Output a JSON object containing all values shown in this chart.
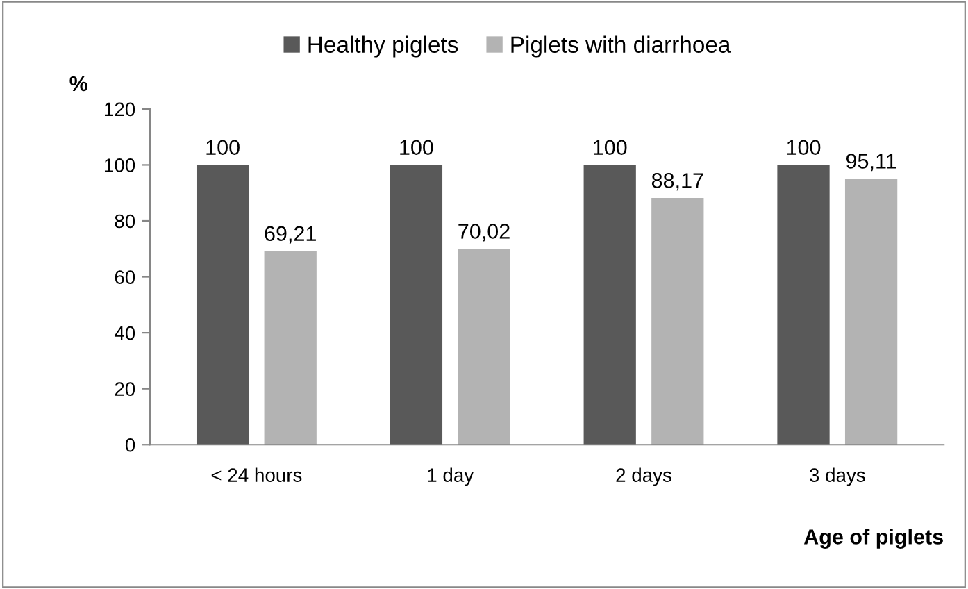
{
  "chart_data": {
    "type": "bar",
    "categories": [
      "< 24 hours",
      "1 day",
      "2 days",
      "3 days"
    ],
    "series": [
      {
        "name": "Healthy piglets",
        "color": "#595959",
        "values": [
          100,
          100,
          100,
          100
        ],
        "value_labels": [
          "100",
          "100",
          "100",
          "100"
        ]
      },
      {
        "name": "Piglets with diarrhoea",
        "color": "#b3b3b3",
        "values": [
          69.21,
          70.02,
          88.17,
          95.11
        ],
        "value_labels": [
          "69,21",
          "70,02",
          "88,17",
          "95,11"
        ]
      }
    ],
    "ylabel": "%",
    "xlabel": "Age of piglets",
    "ylim": [
      0,
      120
    ],
    "yticks": [
      0,
      20,
      40,
      60,
      80,
      100,
      120
    ],
    "legend": "top",
    "grid": false
  }
}
